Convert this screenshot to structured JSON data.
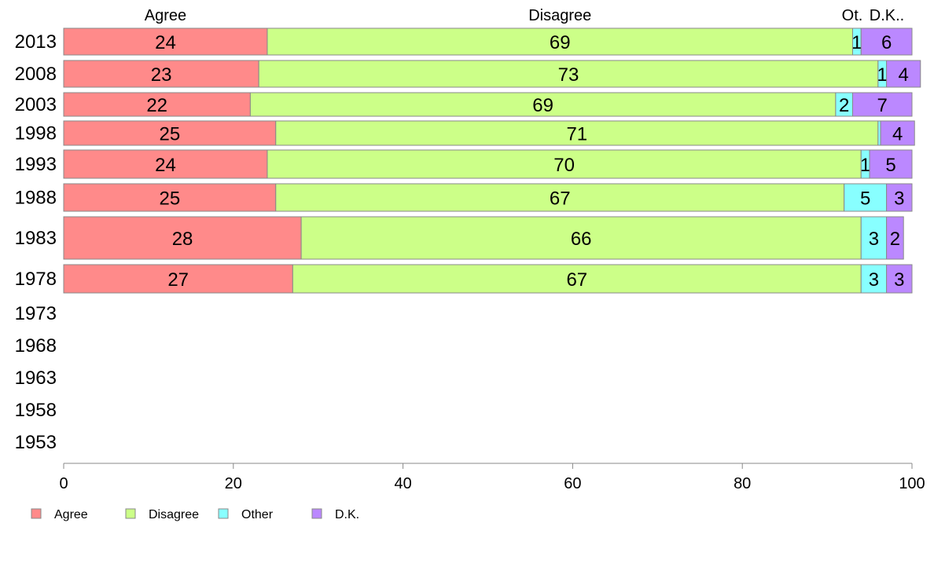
{
  "chart_data": {
    "type": "bar",
    "orientation": "horizontal",
    "stacked": true,
    "categories": [
      "2013",
      "2008",
      "2003",
      "1998",
      "1993",
      "1988",
      "1983",
      "1978",
      "1973",
      "1968",
      "1963",
      "1958",
      "1953"
    ],
    "series": [
      {
        "name": "Agree",
        "color": "#ff8a8a",
        "values": [
          24,
          23,
          22,
          25,
          24,
          25,
          28,
          27,
          null,
          null,
          null,
          null,
          null
        ]
      },
      {
        "name": "Disagree",
        "color": "#ccff88",
        "values": [
          69,
          73,
          69,
          71,
          70,
          67,
          66,
          67,
          null,
          null,
          null,
          null,
          null
        ]
      },
      {
        "name": "Other",
        "color": "#88ffff",
        "values": [
          1,
          1,
          2,
          0.3,
          1,
          5,
          3,
          3,
          null,
          null,
          null,
          null,
          null
        ]
      },
      {
        "name": "D.K.",
        "color": "#bb88ff",
        "values": [
          6,
          4,
          7,
          4,
          5,
          3,
          2,
          3,
          null,
          null,
          null,
          null,
          null
        ]
      }
    ],
    "data_labels": [
      [
        "24",
        "69",
        "1",
        "6"
      ],
      [
        "23",
        "73",
        "1",
        "4"
      ],
      [
        "22",
        "69",
        "2",
        "7"
      ],
      [
        "25",
        "71",
        "",
        "4"
      ],
      [
        "24",
        "70",
        "1",
        "5"
      ],
      [
        "25",
        "67",
        "5",
        "3"
      ],
      [
        "28",
        "66",
        "3",
        "2"
      ],
      [
        "27",
        "67",
        "3",
        "3"
      ]
    ],
    "top_labels": [
      "Agree",
      "Disagree",
      "Ot.",
      "D.K.."
    ],
    "xlim": [
      0,
      100
    ],
    "xticks": [
      0,
      20,
      40,
      60,
      80,
      100
    ],
    "legend": {
      "position": "bottom-left",
      "entries": [
        "Agree",
        "Disagree",
        "Other",
        "D.K."
      ]
    },
    "grid": false,
    "bar_border_color": "#888888"
  }
}
